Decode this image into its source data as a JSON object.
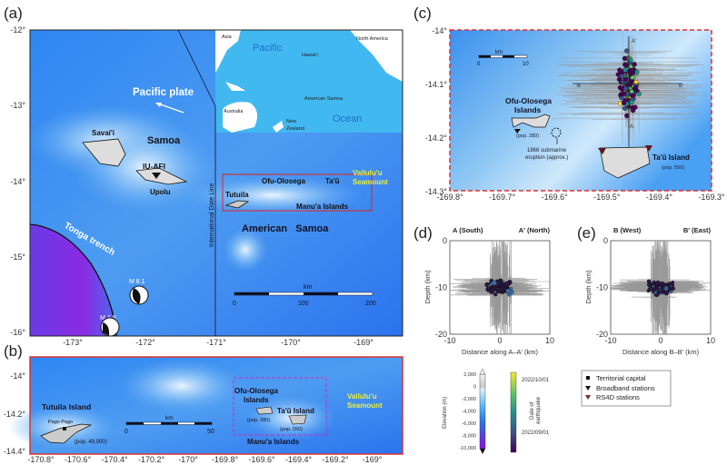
{
  "panels": {
    "a": {
      "label": "(a)",
      "y_ticks": [
        "-12°",
        "-13°",
        "-14°",
        "-15°",
        "-16°"
      ],
      "x_ticks": [
        "-173°",
        "-172°",
        "-171°",
        "-170°",
        "-169°"
      ],
      "labels": {
        "pacific_plate": "Pacific plate",
        "samoa": "Samoa",
        "savaii": "Savai'i",
        "upolu": "Upolu",
        "station": "IU-AFI",
        "tonga_trench": "Tonga trench",
        "m81": "M 8.1",
        "m78": "M 7.8",
        "date_line": "International Date Line",
        "tutuila": "Tutuila",
        "ofu": "Ofu-Olosega",
        "tau": "Ta'ū",
        "manua": "Manu'a Islands",
        "vailulu1": "Vailulu'u",
        "vailulu2": "Seamount",
        "american_samoa": "American   Samoa"
      },
      "scale": {
        "unit": "km",
        "ticks": [
          "0",
          "100",
          "200"
        ]
      },
      "inset": {
        "asia": "Asia",
        "north_america": "North America",
        "pacific": "Pacific",
        "ocean": "Ocean",
        "hawaii": "Hawai'i",
        "american_samoa": "American Samoa",
        "australia": "Australia",
        "nz1": "New",
        "nz2": "Zealand"
      }
    },
    "b": {
      "label": "(b)",
      "y_ticks": [
        "-14°",
        "-14.2°",
        "-14.4°"
      ],
      "x_ticks": [
        "-170.8°",
        "-170.6°",
        "-170.4°",
        "-170.2°",
        "-170°",
        "-169.8°",
        "-169.6°",
        "-169.4°",
        "-169.2°",
        "-169°"
      ],
      "labels": {
        "tutuila": "Tutuila Island",
        "pago": "Pago Pago",
        "pop_tutuila": "(pop. 49,000)",
        "ofu1": "Ofu-Olosega",
        "ofu2": "Islands",
        "pop_ofu": "(pop. 280)",
        "tau": "Ta'ū Island",
        "pop_tau": "(pop. 550)",
        "manua": "Manu'a Islands",
        "vailulu1": "Vailulu'u",
        "vailulu2": "Seamount"
      },
      "scale": {
        "unit": "km",
        "ticks": [
          "0",
          "50"
        ]
      }
    },
    "c": {
      "label": "(c)",
      "y_ticks": [
        "-14°",
        "-14.1°",
        "-14.2°",
        "-14.3°"
      ],
      "x_ticks": [
        "-169.8°",
        "-169.7°",
        "-169.6°",
        "-169.5°",
        "-169.4°",
        "-169.3°"
      ],
      "labels": {
        "ofu1": "Ofu-Olosega",
        "ofu2": "Islands",
        "pop_ofu": "(pop. 280)",
        "eruption1": "1866 submarine",
        "eruption2": "eruption (approx.)",
        "tau": "Ta'ū Island",
        "pop_tau": "(pop. 550)",
        "A": "A",
        "A_prime": "A'",
        "B": "B",
        "B_prime": "B'"
      },
      "scale": {
        "unit": "km",
        "ticks": [
          "0",
          "10"
        ]
      }
    },
    "d": {
      "label": "(d)",
      "left_title": "A (South)",
      "right_title": "A′ (North)",
      "ylabel": "Depth (km)",
      "xlabel": "Distance along A–A′ (km)",
      "y_ticks": [
        "0",
        "-10",
        "-20"
      ],
      "x_ticks": [
        "-10",
        "0",
        "10"
      ]
    },
    "e": {
      "label": "(e)",
      "left_title": "B (West)",
      "right_title": "B′ (East)",
      "ylabel": "Depth (km)",
      "xlabel": "Distance along B–B′ (km)",
      "y_ticks": [
        "0",
        "-10",
        "-20"
      ],
      "x_ticks": [
        "-10",
        "0",
        "10"
      ]
    }
  },
  "elevation_colorbar": {
    "label": "Elevation (m)",
    "ticks": [
      "2,000",
      "0",
      "-2,000",
      "-4,000",
      "-6,000",
      "-8,000",
      "-10,000"
    ]
  },
  "date_colorbar": {
    "label1": "Date of",
    "label2": "earthquake",
    "ticks": [
      "2022/10/01",
      "2022/09/01"
    ]
  },
  "legend": [
    {
      "symbol": "square",
      "label": "Territorial capital",
      "color": "#111111"
    },
    {
      "symbol": "triangle-down",
      "label": "Broadband stations",
      "color": "#111111"
    },
    {
      "symbol": "triangle-down",
      "label": "RS4D stations",
      "color": "#7a2a2a"
    }
  ],
  "colors": {
    "ocean": "#2a7ff0",
    "deep": "#7a2ee0",
    "inset_ocean": "#3fb8f0",
    "frame_red": "#e03030",
    "seamount_label": "#e8f040"
  }
}
